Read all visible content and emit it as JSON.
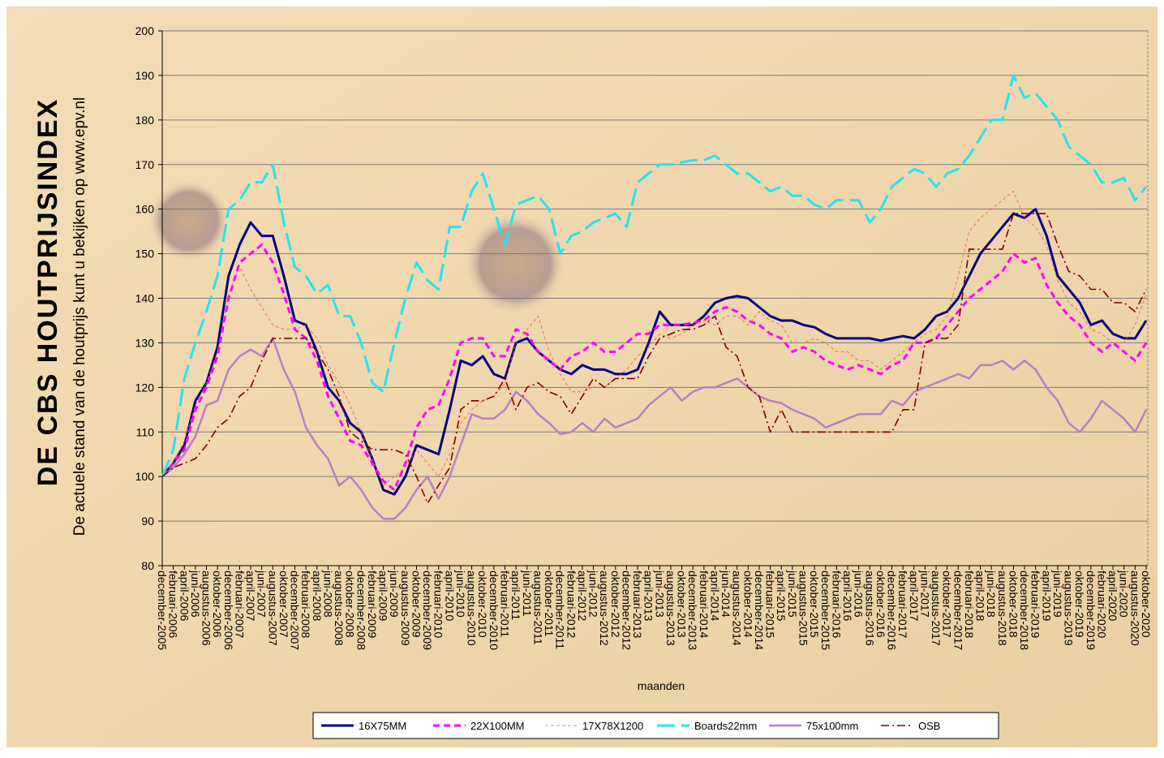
{
  "chart_data": {
    "type": "line",
    "title": "DE CBS HOUTPRIJSINDEX",
    "subtitle": "De actuele stand van de houtprijs kunt u bekijken op www.epv.nl",
    "x_label": "maanden",
    "categories": [
      "december-2005",
      "februari-2006",
      "april-2006",
      "juni-2006",
      "augustus-2006",
      "oktober-2006",
      "december-2006",
      "februari-2007",
      "april-2007",
      "juni-2007",
      "augustus-2007",
      "oktober-2007",
      "december-2007",
      "februari-2008",
      "april-2008",
      "juni-2008",
      "augustus-2008",
      "oktober-2008",
      "december-2008",
      "februari-2009",
      "april-2009",
      "juni-2009",
      "augustus-2009",
      "oktober-2009",
      "december-2009",
      "februari-2010",
      "april-2010",
      "juni-2010",
      "augustus-2010",
      "oktober-2010",
      "december-2010",
      "februari-2011",
      "april-2011",
      "juni-2011",
      "augustus-2011",
      "oktober-2011",
      "december-2011",
      "februari-2012",
      "april-2012",
      "juni-2012",
      "augustus-2012",
      "oktober-2012",
      "december-2012",
      "februari-2013",
      "april-2013",
      "juni-2013",
      "augustus-2013",
      "oktober-2013",
      "december-2013",
      "februari-2014",
      "april-2014",
      "juni-2014",
      "augustus-2014",
      "oktober-2014",
      "december-2014",
      "februari-2015",
      "april-2015",
      "juni-2015",
      "augustus-2015",
      "oktober-2015",
      "december-2015",
      "februari-2016",
      "april-2016",
      "juni-2016",
      "augustus-2016",
      "oktober-2016",
      "december-2016",
      "februari-2017",
      "april-2017",
      "juni-2017",
      "augustus-2017",
      "oktober-2017",
      "december-2017",
      "februari-2018",
      "april-2018",
      "juni-2018",
      "augustus-2018",
      "oktober-2018",
      "december-2018",
      "februari-2019",
      "april-2019",
      "juni-2019",
      "augustus-2019",
      "oktober-2019",
      "december-2019",
      "februari-2020",
      "april-2020",
      "juni-2020",
      "augustus-2020",
      "oktober-2020"
    ],
    "series": [
      {
        "name": "16X75MM",
        "color": "#000080",
        "values": [
          100,
          103,
          107,
          117,
          121,
          129,
          145,
          152,
          157,
          154,
          154,
          145,
          135,
          134,
          128,
          120,
          117,
          112,
          110,
          104,
          97,
          96,
          100,
          107,
          106,
          105,
          115,
          126,
          125,
          127,
          123,
          122,
          130,
          131,
          128,
          126,
          124,
          123,
          125,
          124,
          124,
          123,
          123,
          124,
          130,
          137,
          134,
          134,
          134,
          136,
          139,
          140,
          140.5,
          140,
          138,
          136,
          135,
          135,
          134,
          133.5,
          132,
          131,
          131,
          131,
          131,
          130.5,
          131,
          131.5,
          131,
          133,
          136,
          137,
          140,
          145,
          150,
          153,
          156,
          159,
          158,
          160,
          154,
          145,
          142,
          139,
          134,
          135,
          132,
          131,
          131,
          135
        ]
      },
      {
        "name": "22X100MM",
        "color": "#ff00ff",
        "values": [
          100,
          103,
          106,
          115,
          120,
          127,
          140,
          148,
          150,
          152,
          148,
          141,
          133,
          131,
          126,
          118,
          113,
          108,
          107,
          103,
          99,
          97,
          103,
          111,
          115,
          116,
          122,
          130,
          131,
          131,
          127,
          127,
          133,
          132,
          128,
          126,
          124,
          127,
          128,
          130,
          128,
          128,
          130,
          132,
          132,
          134,
          134,
          134,
          134.5,
          135,
          137,
          138,
          137,
          135,
          134,
          132,
          131,
          128,
          129,
          128,
          126,
          125,
          124,
          125,
          124,
          123,
          125,
          126,
          130,
          130,
          131,
          134,
          137,
          140,
          142,
          144,
          146,
          150,
          148,
          149,
          143,
          139,
          136,
          134,
          130,
          128,
          130,
          128,
          126,
          130
        ]
      },
      {
        "name": "17X78X1200",
        "color": "#e8603c",
        "values": [
          100,
          103,
          108,
          116,
          121,
          128,
          141,
          147,
          142,
          138,
          134,
          133,
          133,
          134,
          131,
          125,
          121,
          116,
          110,
          104,
          98,
          100,
          102,
          106,
          103,
          100,
          105,
          112,
          115,
          117,
          118,
          121,
          130,
          133,
          136,
          128,
          123,
          119,
          119,
          120,
          120,
          122,
          124,
          127,
          129,
          132,
          131,
          132,
          134,
          135,
          134,
          136,
          136,
          134,
          137,
          135,
          134,
          130,
          130,
          131,
          130,
          128,
          128,
          126,
          126,
          124,
          126,
          128,
          130,
          132,
          133,
          136,
          145,
          155,
          158,
          160,
          162,
          164,
          158,
          156,
          152,
          144,
          139,
          137,
          133,
          132,
          130,
          130,
          134,
          141
        ]
      },
      {
        "name": "Boards22mm",
        "color": "#22e4f2",
        "values": [
          100,
          106,
          122,
          130,
          137,
          145,
          160,
          162,
          166,
          166,
          170,
          157,
          147,
          145,
          141,
          143,
          136,
          136,
          130,
          121,
          119,
          130,
          140,
          148,
          144,
          142,
          156,
          156,
          164,
          168,
          160,
          152,
          161,
          162,
          163,
          160,
          150,
          154,
          155,
          157,
          158,
          159,
          156,
          166,
          168,
          170,
          170,
          170.5,
          171,
          171,
          172,
          170,
          168,
          168,
          166,
          164,
          165,
          163,
          163,
          161,
          160,
          162,
          162,
          162,
          157,
          160,
          165,
          167,
          169,
          168,
          165,
          168,
          169,
          172,
          176,
          180,
          180,
          190,
          185,
          186,
          183,
          180,
          174,
          172,
          170,
          166,
          166,
          167,
          162,
          165
        ]
      },
      {
        "name": "75x100mm",
        "color": "#b87fc8",
        "values": [
          100,
          102,
          105,
          109,
          116,
          117,
          124,
          127,
          128.5,
          127,
          131,
          124,
          119,
          111,
          107,
          104,
          98,
          100,
          97,
          93,
          90.5,
          90.5,
          93,
          97,
          100,
          95,
          100,
          107,
          114,
          113,
          113,
          115,
          119,
          117,
          114,
          112,
          109.5,
          110,
          112,
          110,
          113,
          111,
          112,
          113,
          116,
          118,
          120,
          117,
          119,
          120,
          120,
          121,
          122,
          120,
          118,
          117,
          116.5,
          115,
          114,
          113,
          111,
          112,
          113,
          114,
          114,
          114,
          117,
          116,
          119,
          120,
          121,
          122,
          123,
          122,
          125,
          125,
          126,
          124,
          126,
          124,
          120,
          117,
          112,
          110,
          113,
          117,
          115,
          113,
          110,
          115
        ]
      },
      {
        "name": "OSB",
        "color": "#800000",
        "values": [
          100,
          102,
          103,
          104,
          107,
          111,
          113,
          118,
          120,
          126,
          131,
          131,
          131,
          131,
          128,
          124,
          118,
          110,
          108,
          106,
          106,
          106,
          105,
          100,
          94,
          98,
          102,
          115,
          117,
          117,
          118,
          122,
          115,
          120,
          121,
          119,
          118,
          114,
          118,
          122,
          120,
          122,
          122,
          122,
          127,
          131,
          132,
          133,
          133,
          134,
          136,
          129,
          127,
          120,
          118,
          110,
          115,
          110,
          110,
          110,
          110,
          110,
          110,
          110,
          110,
          110,
          110,
          115,
          115,
          130,
          131,
          131,
          134,
          151,
          151,
          151,
          151,
          159,
          159,
          159,
          159,
          152,
          146,
          145,
          142,
          142,
          139,
          139,
          137,
          142
        ]
      }
    ],
    "ylim": [
      80,
      200
    ],
    "yticks": [
      80,
      90,
      100,
      110,
      120,
      130,
      140,
      150,
      160,
      170,
      180,
      190,
      200
    ],
    "grid": true,
    "legend": "bottom"
  }
}
